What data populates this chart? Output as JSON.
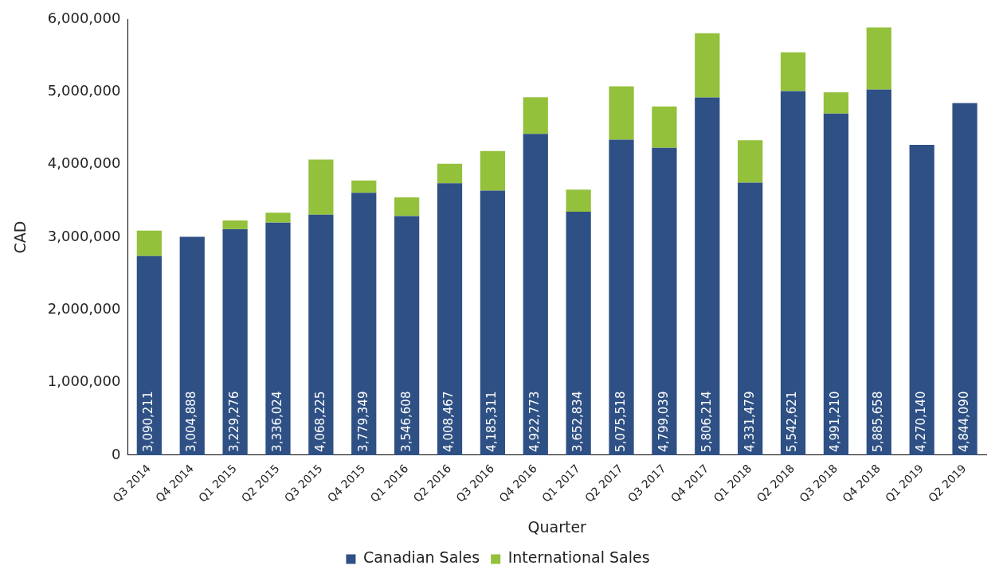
{
  "chart_data": {
    "type": "bar",
    "stacked": true,
    "xlabel": "Quarter",
    "ylabel": "CAD",
    "categories": [
      "Q3 2014",
      "Q4 2014",
      "Q1 2015",
      "Q2 2015",
      "Q3 2015",
      "Q4 2015",
      "Q1 2016",
      "Q2 2016",
      "Q3 2016",
      "Q4 2016",
      "Q1 2017",
      "Q2 2017",
      "Q3 2017",
      "Q4 2017",
      "Q1 2018",
      "Q2 2018",
      "Q3 2018",
      "Q4 2018",
      "Q1 2019",
      "Q2 2019"
    ],
    "series": [
      {
        "name": "Canadian Sales",
        "color": "#2e5084",
        "values": [
          2740000,
          3004888,
          3110000,
          3200000,
          3310000,
          3610000,
          3290000,
          3740000,
          3640000,
          4420000,
          3350000,
          4340000,
          4230000,
          4920000,
          3750000,
          5010000,
          4700000,
          5030000,
          4270140,
          4844090
        ]
      },
      {
        "name": "International Sales",
        "color": "#93c13b",
        "values": [
          350211,
          0,
          119276,
          136024,
          758225,
          169349,
          256608,
          268467,
          545311,
          502773,
          302834,
          735518,
          569039,
          886214,
          581479,
          532621,
          291210,
          855658,
          0,
          0
        ]
      }
    ],
    "totals": [
      "3,090,211",
      "3,004,888",
      "3,229,276",
      "3,336,024",
      "4,068,225",
      "3,779,349",
      "3,546,608",
      "4,008,467",
      "4,185,311",
      "4,922,773",
      "3,652,834",
      "5,075,518",
      "4,799,039",
      "5,806,214",
      "4,331,479",
      "5,542,621",
      "4,991,210",
      "5,885,658",
      "4,270,140",
      "4,844,090"
    ],
    "ylim": [
      0,
      6000000
    ],
    "yticks": [
      0,
      {
        "value": 1000000,
        "label": "1,000,000"
      },
      {
        "value": 2000000,
        "label": "2,000,000"
      },
      {
        "value": 3000000,
        "label": "3,000,000"
      },
      {
        "value": 4000000,
        "label": "4,000,000"
      },
      {
        "value": 5000000,
        "label": "5,000,000"
      },
      {
        "value": 6000000,
        "label": "6,000,000"
      }
    ],
    "grid": false,
    "legend": "bottom"
  }
}
